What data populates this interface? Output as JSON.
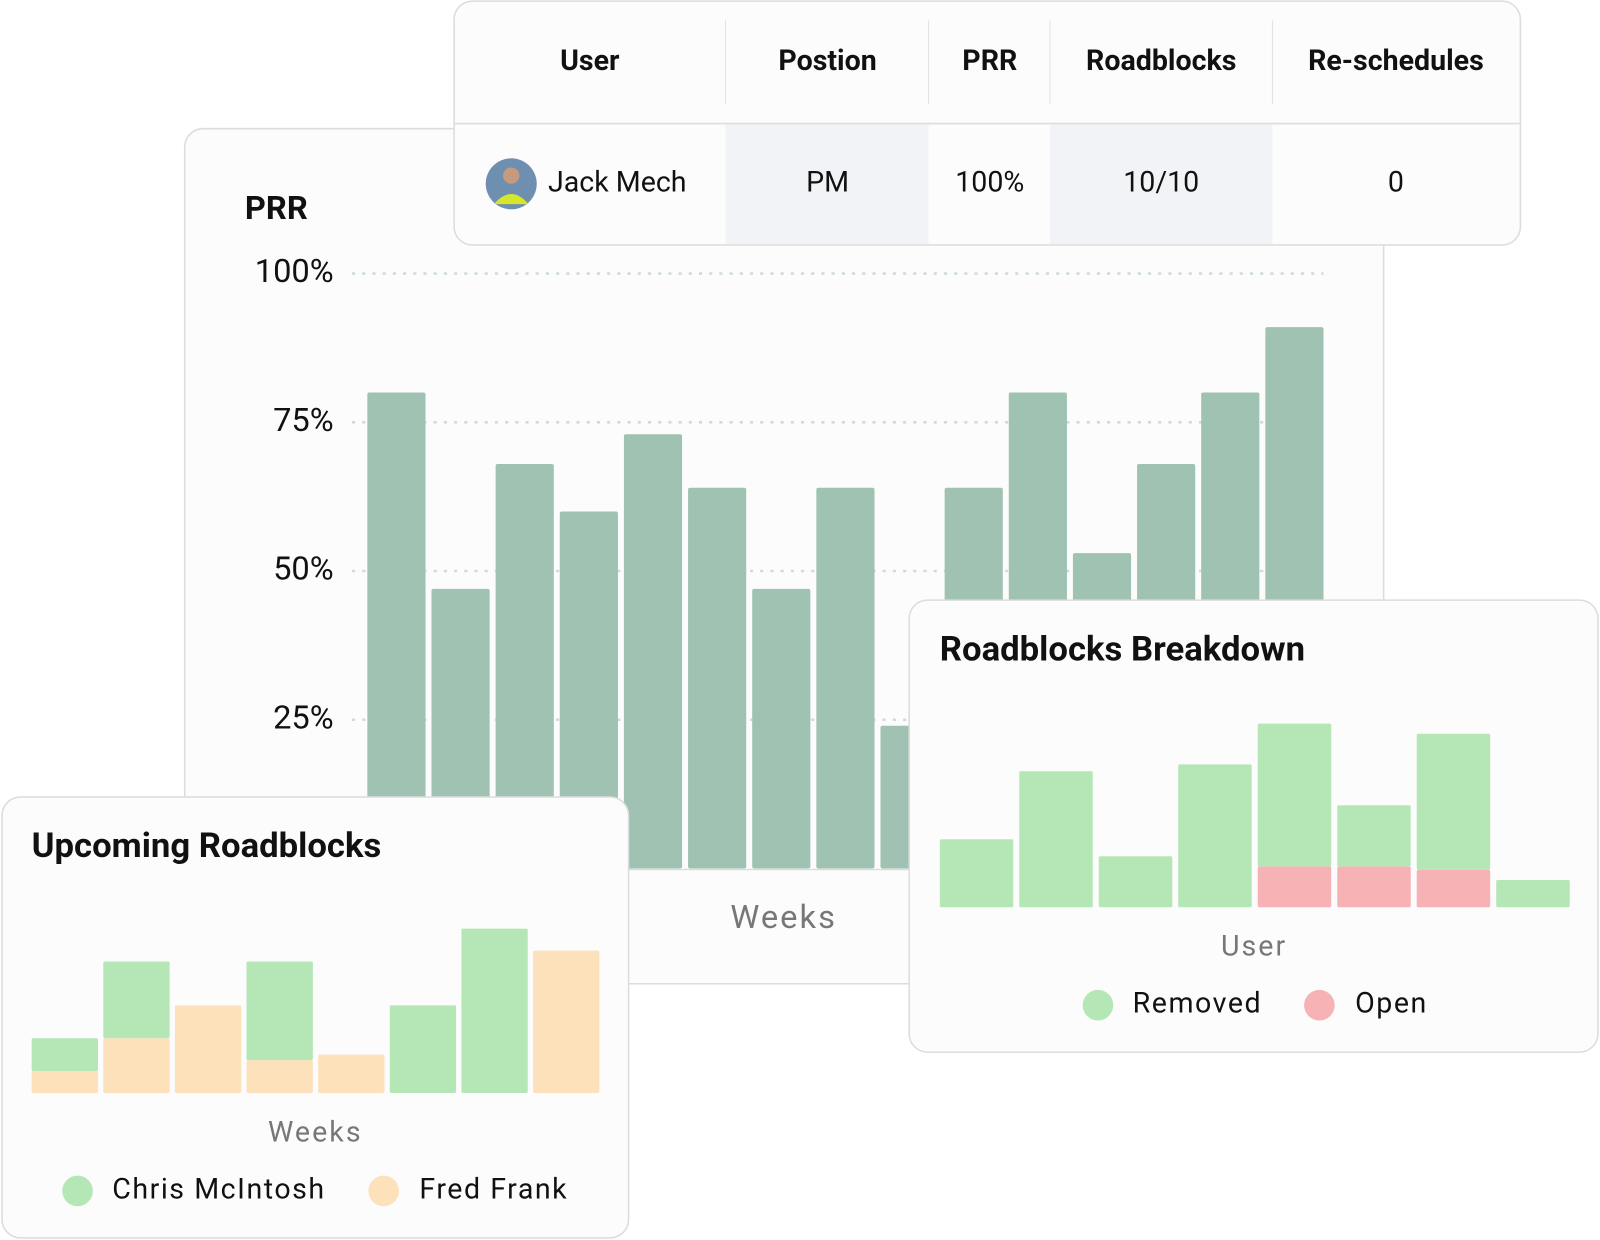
{
  "table": {
    "columns": [
      "User",
      "Postion",
      "PRR",
      "Roadblocks",
      "Re-schedules"
    ],
    "rows": [
      [
        "Jack Mech",
        "PM",
        "100%",
        "10/10",
        "0"
      ]
    ]
  },
  "chart_data": [
    {
      "type": "bar",
      "title": "PRR",
      "x_label": "Weeks",
      "categories": [
        null,
        null,
        null,
        null,
        null,
        null,
        null,
        null,
        null,
        null,
        null,
        null,
        null,
        null,
        null
      ],
      "values": [
        80,
        47,
        68,
        60,
        73,
        64,
        47,
        64,
        24,
        64,
        80,
        53,
        68,
        80,
        91
      ],
      "color": "#9fc2b2",
      "ylim": [
        0,
        100
      ],
      "yticks": [
        {
          "value": 25,
          "label": "25%"
        },
        {
          "value": 50,
          "label": "50%"
        },
        {
          "value": 75,
          "label": "75%"
        },
        {
          "value": 100,
          "label": "100%"
        }
      ],
      "grid": true
    },
    {
      "type": "stacked-bar",
      "title": "Upcoming Roadblocks",
      "x_label": "Weeks",
      "categories": [
        null,
        null,
        null,
        null,
        null,
        null,
        null,
        null
      ],
      "series": [
        {
          "name": "Chris McIntosh",
          "color": "#b5e6b6",
          "values": [
            3,
            7,
            0,
            9,
            0,
            8,
            15,
            0
          ]
        },
        {
          "name": "Fred Frank",
          "color": "#fce1bb",
          "values": [
            2,
            5,
            8,
            3,
            3.5,
            0,
            0,
            13
          ]
        }
      ]
    },
    {
      "type": "stacked-bar",
      "title": "Roadblocks Breakdown",
      "x_label": "User",
      "categories": [
        null,
        null,
        null,
        null,
        null,
        null,
        null,
        null
      ],
      "series": [
        {
          "name": "Removed",
          "color": "#b5e6b6",
          "values": [
            10,
            20,
            7.5,
            21,
            21,
            9,
            20,
            4
          ]
        },
        {
          "name": "Open",
          "color": "#f7b2b5",
          "values": [
            0,
            0,
            0,
            0,
            6,
            6,
            5.5,
            0
          ]
        }
      ]
    }
  ]
}
